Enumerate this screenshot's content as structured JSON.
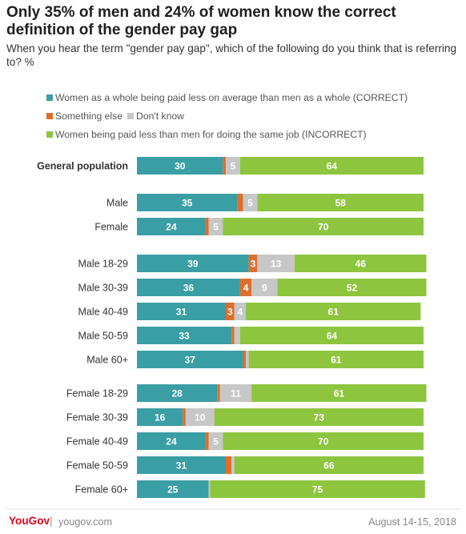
{
  "title": "Only 35% of men and 24% of women know the correct definition of the gender pay gap",
  "subtitle": "When you hear the term \"gender pay gap\", which of the following do you think that is referring to? %",
  "legend": {
    "correct": "Women as a whole being paid less on average than men as a whole (CORRECT)",
    "else": "Something else",
    "dontknow": "Don't know",
    "incorrect": "Women being paid less than men for doing the same job (INCORRECT)"
  },
  "colors": {
    "correct": "#3a9ea5",
    "else": "#dd6f2a",
    "dontknow": "#c7c7c7",
    "incorrect": "#8dc53e"
  },
  "footer": {
    "brand": "YouGov",
    "separator": "|",
    "url": "yougov.com",
    "date": "August 14-15, 2018"
  },
  "chart_data": {
    "type": "bar",
    "orientation": "horizontal",
    "stacked": true,
    "xlim": [
      0,
      100
    ],
    "categories": [
      "General population",
      "Male",
      "Female",
      "Male 18-29",
      "Male 30-39",
      "Male 40-49",
      "Male 50-59",
      "Male 60+",
      "Female 18-29",
      "Female 30-39",
      "Female 40-49",
      "Female 50-59",
      "Female 60+"
    ],
    "series": [
      {
        "name": "Women as a whole being paid less on average than men as a whole (CORRECT)",
        "key": "correct",
        "values": [
          30,
          35,
          24,
          39,
          36,
          31,
          33,
          37,
          28,
          16,
          24,
          31,
          25
        ]
      },
      {
        "name": "Something else",
        "key": "else",
        "values": [
          1,
          2,
          1,
          3,
          4,
          3,
          1,
          1,
          1,
          1,
          1,
          2,
          0
        ]
      },
      {
        "name": "Don't know",
        "key": "dontknow",
        "values": [
          5,
          5,
          5,
          13,
          9,
          4,
          2,
          1,
          11,
          10,
          5,
          1,
          0.5
        ]
      },
      {
        "name": "Women being paid less than men for doing the same job (INCORRECT)",
        "key": "incorrect",
        "values": [
          64,
          58,
          70,
          46,
          52,
          61,
          64,
          61,
          61,
          73,
          70,
          66,
          75
        ]
      }
    ],
    "data_labels": [
      [
        "30",
        "",
        "5",
        "64"
      ],
      [
        "35",
        "",
        "5",
        "58"
      ],
      [
        "24",
        "",
        "5",
        "70"
      ],
      [
        "39",
        "3",
        "13",
        "46"
      ],
      [
        "36",
        "4",
        "9",
        "52"
      ],
      [
        "31",
        "3",
        "4",
        "61"
      ],
      [
        "33",
        "",
        "",
        "64"
      ],
      [
        "37",
        "",
        "",
        "61"
      ],
      [
        "28",
        "",
        "11",
        "61"
      ],
      [
        "16",
        "",
        "10",
        "73"
      ],
      [
        "24",
        "",
        "5",
        "70"
      ],
      [
        "31",
        "",
        "",
        "66"
      ],
      [
        "25",
        "",
        "",
        "75"
      ]
    ],
    "bold_categories": [
      "General population"
    ]
  }
}
